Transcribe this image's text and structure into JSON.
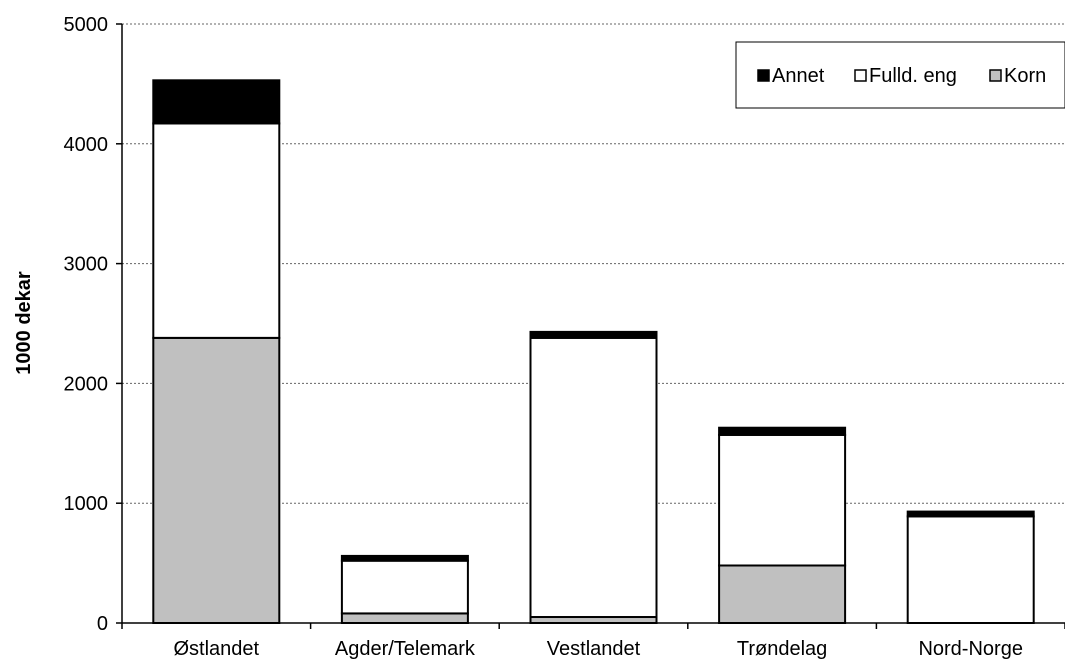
{
  "chart_data": {
    "type": "bar",
    "stacked": true,
    "title": "",
    "xlabel": "",
    "ylabel": "1000 dekar",
    "ylim": [
      0,
      5000
    ],
    "yticks": [
      0,
      1000,
      2000,
      3000,
      4000,
      5000
    ],
    "grid": "horizontal dashed",
    "legend_position": "top-right",
    "categories": [
      "Østlandet",
      "Agder/Telemark",
      "Vestlandet",
      "Trøndelag",
      "Nord-Norge"
    ],
    "series": [
      {
        "name": "Korn",
        "color": "#c0c0c0",
        "values": [
          2380,
          80,
          50,
          480,
          0
        ]
      },
      {
        "name": "Fulld. eng",
        "color": "#ffffff",
        "values": [
          1790,
          440,
          2330,
          1090,
          890
        ]
      },
      {
        "name": "Annet",
        "color": "#000000",
        "values": [
          360,
          40,
          50,
          60,
          40
        ]
      }
    ],
    "legend_order": [
      "Annet",
      "Fulld. eng",
      "Korn"
    ]
  }
}
